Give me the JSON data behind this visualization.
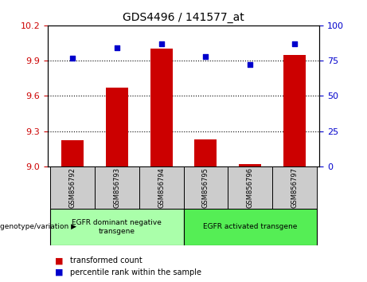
{
  "title": "GDS4496 / 141577_at",
  "samples": [
    "GSM856792",
    "GSM856793",
    "GSM856794",
    "GSM856795",
    "GSM856796",
    "GSM856797"
  ],
  "bar_values": [
    9.22,
    9.67,
    10.0,
    9.23,
    9.02,
    9.95
  ],
  "scatter_values": [
    77,
    84,
    87,
    78,
    72,
    87
  ],
  "ylim_left": [
    9.0,
    10.2
  ],
  "ylim_right": [
    0,
    100
  ],
  "yticks_left": [
    9.0,
    9.3,
    9.6,
    9.9,
    10.2
  ],
  "yticks_right": [
    0,
    25,
    50,
    75,
    100
  ],
  "bar_color": "#cc0000",
  "scatter_color": "#0000cc",
  "group1_label": "EGFR dominant negative\ntransgene",
  "group2_label": "EGFR activated transgene",
  "group1_color": "#aaffaa",
  "group2_color": "#55ee55",
  "tick_color_left": "#cc0000",
  "tick_color_right": "#0000cc",
  "legend_bar_label": "transformed count",
  "legend_scatter_label": "percentile rank within the sample",
  "genotype_label": "genotype/variation"
}
